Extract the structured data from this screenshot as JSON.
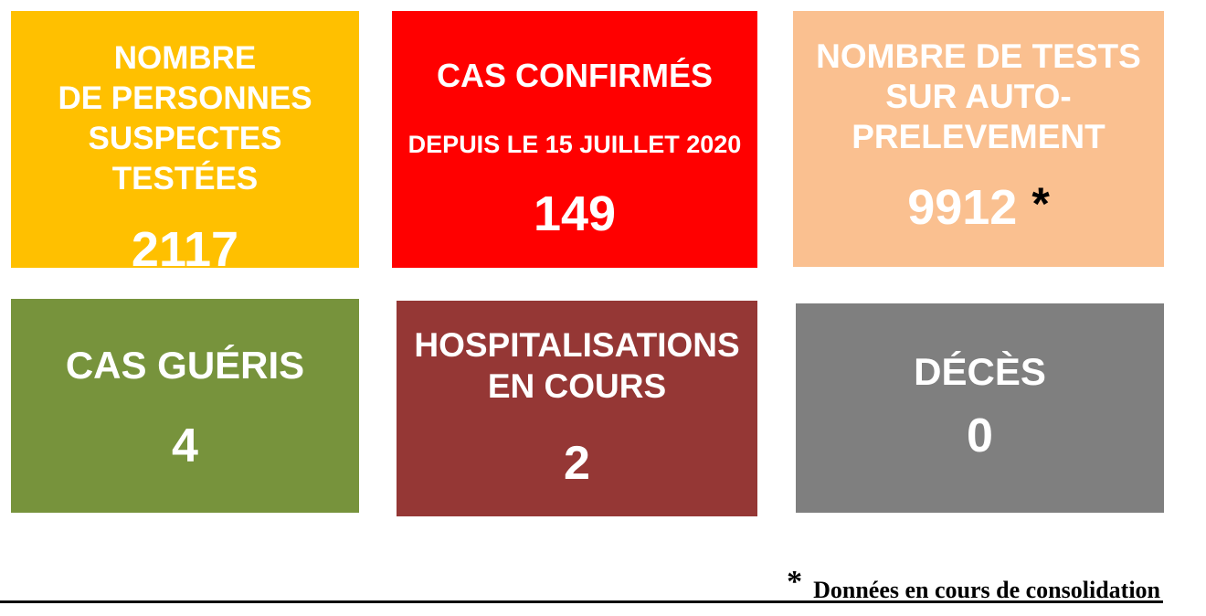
{
  "page": {
    "background": "#FFFFFF"
  },
  "cards": [
    {
      "id": "tested-suspects",
      "color": "#FFC000",
      "text_color": "#FFFFFF",
      "title_lines": [
        "NOMBRE",
        "DE PERSONNES",
        "SUSPECTES TESTÉES"
      ],
      "value": "2117"
    },
    {
      "id": "confirmed-cases",
      "color": "#FF0000",
      "text_color": "#FFFFFF",
      "title_lines": [
        "CAS CONFIRMÉS"
      ],
      "subtitle": "DEPUIS LE 15 JUILLET 2020",
      "value": "149"
    },
    {
      "id": "self-sampling-tests",
      "color": "#FAC090",
      "text_color": "#FFFFFF",
      "title_lines": [
        "NOMBRE DE TESTS",
        "SUR AUTO-",
        "PRELEVEMENT"
      ],
      "value": "9912",
      "value_note": "*",
      "note_color": "#000000"
    },
    {
      "id": "recovered-cases",
      "color": "#77933C",
      "text_color": "#FFFFFF",
      "title_lines": [
        "CAS GUÉRIS"
      ],
      "value": "4"
    },
    {
      "id": "current-hospitalizations",
      "color": "#953735",
      "text_color": "#FFFFFF",
      "title_lines": [
        "HOSPITALISATIONS",
        "EN COURS"
      ],
      "value": "2"
    },
    {
      "id": "deaths",
      "color": "#7F7F7F",
      "text_color": "#FFFFFF",
      "title_lines": [
        "DÉCÈS"
      ],
      "value": "0"
    }
  ],
  "footnote": {
    "marker": "*",
    "text": "Données en cours de consolidation",
    "color": "#000000"
  }
}
